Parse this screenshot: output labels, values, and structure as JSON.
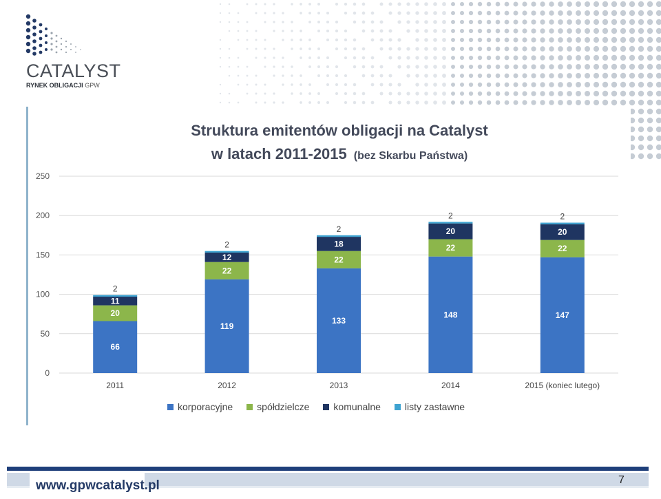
{
  "logo": {
    "word": "CATALYST",
    "sub": "RYNEK OBLIGACJI",
    "sub_gpw": "GPW"
  },
  "colors": {
    "korporacyjne": "#3c74c4",
    "spoldzielcze": "#8cb64b",
    "komunalne": "#1f3561",
    "listy_zastawne": "#3ea3d1",
    "brand": "#243a66"
  },
  "chart_data": {
    "type": "bar",
    "stacked": true,
    "title": "Struktura emitentów obligacji na Catalyst",
    "subtitle_main": "w latach 2011-2015",
    "subtitle_note": "(bez Skarbu Państwa)",
    "categories": [
      "2011",
      "2012",
      "2013",
      "2014",
      "2015 (koniec lutego)"
    ],
    "series": [
      {
        "name": "korporacyjne",
        "values": [
          66,
          119,
          133,
          148,
          147
        ]
      },
      {
        "name": "spółdzielcze",
        "values": [
          20,
          22,
          22,
          22,
          22
        ]
      },
      {
        "name": "komunalne",
        "values": [
          11,
          12,
          18,
          20,
          20
        ]
      },
      {
        "name": "listy zastawne",
        "values": [
          2,
          2,
          2,
          2,
          2
        ]
      }
    ],
    "ylim": [
      0,
      250
    ],
    "yticks": [
      0,
      50,
      100,
      150,
      200,
      250
    ],
    "grid": true,
    "legend": "bottom"
  },
  "footer": {
    "url": "www.gpwcatalyst.pl",
    "page": "7"
  }
}
